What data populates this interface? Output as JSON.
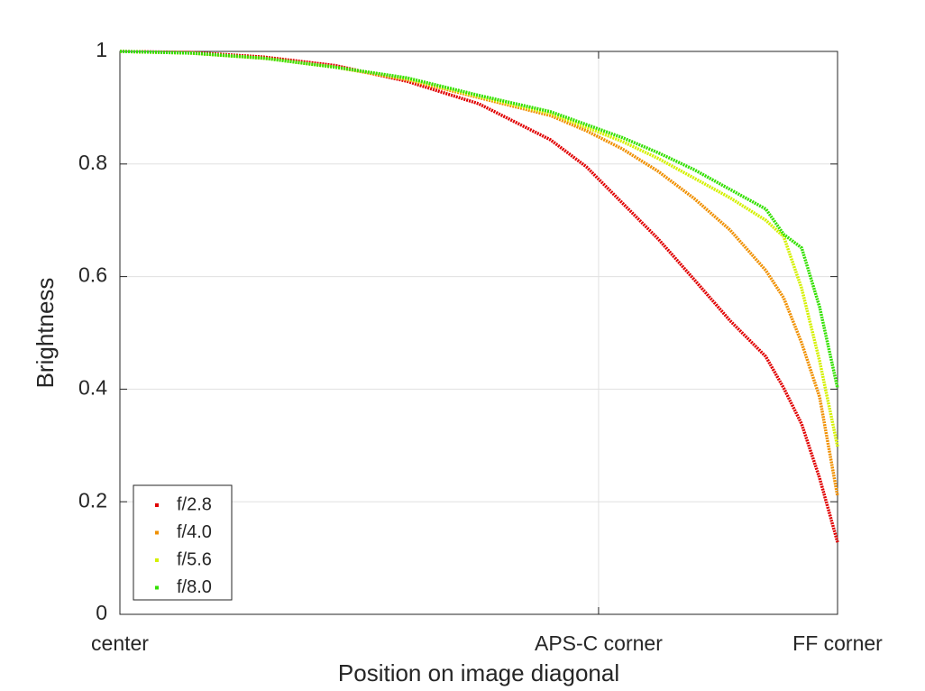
{
  "chart_data": {
    "type": "line",
    "xlabel": "Position on image diagonal",
    "ylabel": "Brightness",
    "x": [
      0,
      0.1,
      0.2,
      0.3,
      0.4,
      0.5,
      0.6,
      0.65,
      0.7,
      0.75,
      0.8,
      0.85,
      0.9,
      0.925,
      0.95,
      0.975,
      1.0
    ],
    "xlim": [
      0,
      1
    ],
    "xticks": [
      {
        "value": 0,
        "label": "center"
      },
      {
        "value": 0.667,
        "label": "APS-C corner"
      },
      {
        "value": 1,
        "label": "FF corner"
      }
    ],
    "ylim": [
      0,
      1
    ],
    "yticks": [
      0,
      0.2,
      0.4,
      0.6,
      0.8,
      1
    ],
    "grid": true,
    "legend": "lower left",
    "series": [
      {
        "name": "f/2.8",
        "color": "#e00000",
        "values": [
          1.0,
          0.998,
          0.99,
          0.975,
          0.947,
          0.907,
          0.843,
          0.795,
          0.731,
          0.667,
          0.595,
          0.522,
          0.458,
          0.402,
          0.338,
          0.242,
          0.128
        ]
      },
      {
        "name": "f/4.0",
        "color": "#f09000",
        "values": [
          1.0,
          0.997,
          0.988,
          0.972,
          0.95,
          0.918,
          0.886,
          0.859,
          0.827,
          0.787,
          0.739,
          0.683,
          0.611,
          0.562,
          0.482,
          0.386,
          0.21
        ]
      },
      {
        "name": "f/5.6",
        "color": "#d4f000",
        "values": [
          1.0,
          0.997,
          0.988,
          0.972,
          0.952,
          0.92,
          0.89,
          0.865,
          0.84,
          0.81,
          0.775,
          0.74,
          0.7,
          0.671,
          0.579,
          0.45,
          0.298
        ]
      },
      {
        "name": "f/8.0",
        "color": "#33e000",
        "values": [
          1.0,
          0.997,
          0.988,
          0.972,
          0.953,
          0.922,
          0.893,
          0.87,
          0.847,
          0.82,
          0.79,
          0.755,
          0.72,
          0.675,
          0.651,
          0.546,
          0.402
        ]
      }
    ]
  }
}
